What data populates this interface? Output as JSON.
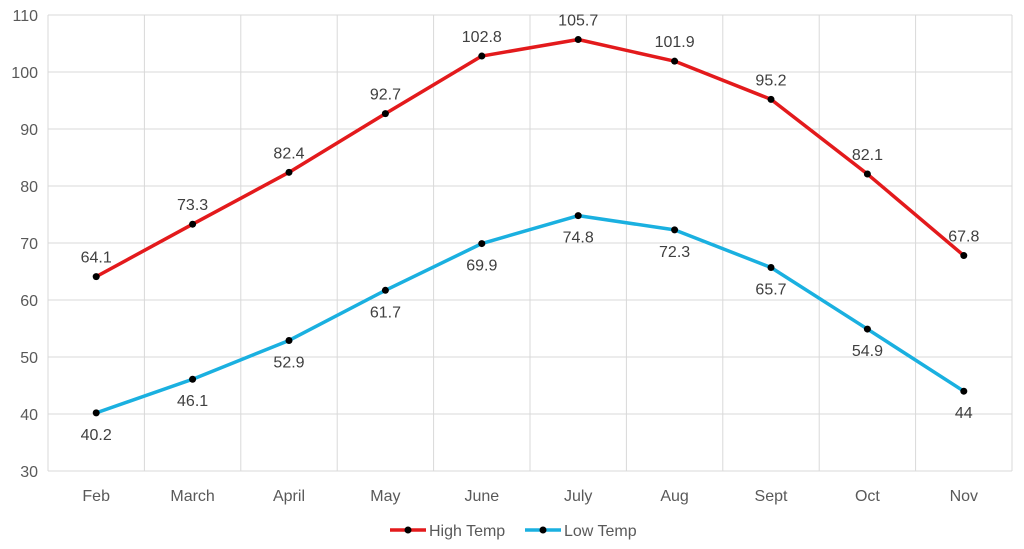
{
  "chart_data": {
    "type": "line",
    "title": "",
    "xlabel": "",
    "ylabel": "",
    "categories": [
      "Feb",
      "March",
      "April",
      "May",
      "June",
      "July",
      "Aug",
      "Sept",
      "Oct",
      "Nov"
    ],
    "ylim": [
      30,
      110
    ],
    "yticks": [
      "30",
      "40",
      "50",
      "60",
      "70",
      "80",
      "90",
      "100",
      "110"
    ],
    "grid": true,
    "legend_position": "bottom",
    "series": [
      {
        "name": "High Temp",
        "color": "#e31a1c",
        "values": [
          64.1,
          73.3,
          82.4,
          92.7,
          102.8,
          105.7,
          101.9,
          95.2,
          82.1,
          67.8
        ],
        "labels": [
          "64.1",
          "73.3",
          "82.4",
          "92.7",
          "102.8",
          "105.7",
          "101.9",
          "95.2",
          "82.1",
          "67.8"
        ],
        "label_position": "above"
      },
      {
        "name": "Low Temp",
        "color": "#1ab0e0",
        "values": [
          40.2,
          46.1,
          52.9,
          61.7,
          69.9,
          74.8,
          72.3,
          65.7,
          54.9,
          44
        ],
        "labels": [
          "40.2",
          "46.1",
          "52.9",
          "61.7",
          "69.9",
          "74.8",
          "72.3",
          "65.7",
          "54.9",
          "44"
        ],
        "label_position": "below"
      }
    ]
  }
}
